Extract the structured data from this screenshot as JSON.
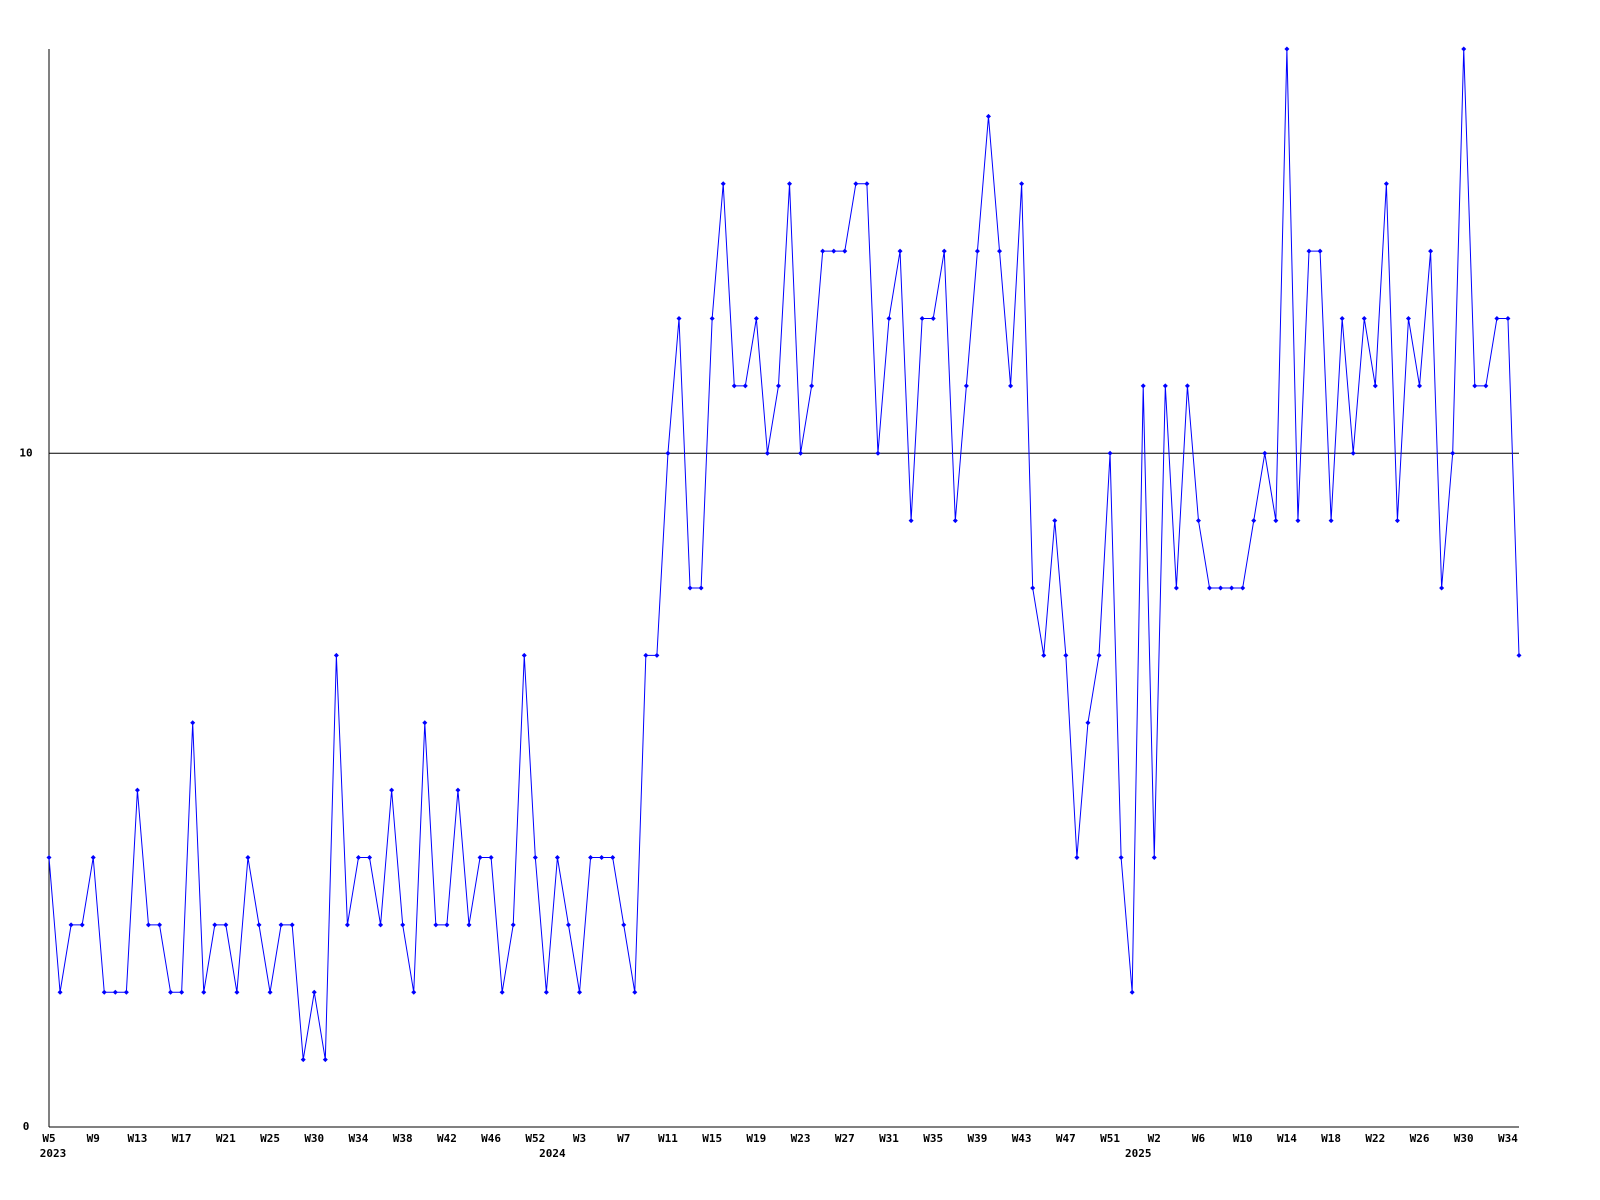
{
  "chart_data": {
    "type": "line",
    "categories": [
      "W5",
      null,
      null,
      null,
      "W9",
      null,
      null,
      null,
      "W13",
      null,
      null,
      null,
      "W17",
      null,
      null,
      null,
      "W21",
      null,
      null,
      null,
      "W25",
      null,
      null,
      null,
      "W30",
      null,
      null,
      null,
      "W34",
      null,
      null,
      null,
      "W38",
      null,
      null,
      null,
      "W42",
      null,
      null,
      null,
      "W46",
      null,
      null,
      null,
      "W52",
      null,
      null,
      null,
      "W3",
      null,
      null,
      null,
      "W7",
      null,
      null,
      null,
      "W11",
      null,
      null,
      null,
      "W15",
      null,
      null,
      null,
      "W19",
      null,
      null,
      null,
      "W23",
      null,
      null,
      null,
      "W27",
      null,
      null,
      null,
      "W31",
      null,
      null,
      null,
      "W35",
      null,
      null,
      null,
      "W39",
      null,
      null,
      null,
      "W43",
      null,
      null,
      null,
      "W47",
      null,
      null,
      null,
      "W51",
      null,
      null,
      null,
      "W2",
      null,
      null,
      null,
      "W6",
      null,
      null,
      null,
      "W10",
      null,
      null,
      null,
      "W14",
      null,
      null,
      null,
      "W18",
      null,
      null,
      null,
      "W22",
      null,
      null,
      null,
      "W26",
      null,
      null,
      null,
      "W30",
      null,
      null,
      null,
      "W34",
      null
    ],
    "year_groups": [
      {
        "label": "2023",
        "start": 0
      },
      {
        "label": "2024",
        "start": 46
      },
      {
        "label": "2025",
        "start": 99
      }
    ],
    "values": [
      4,
      2,
      3,
      3,
      4,
      2,
      2,
      2,
      5,
      3,
      3,
      2,
      2,
      6,
      2,
      3,
      3,
      2,
      4,
      3,
      2,
      3,
      3,
      1,
      2,
      1,
      7,
      3,
      4,
      4,
      3,
      5,
      3,
      2,
      6,
      3,
      3,
      5,
      3,
      4,
      4,
      2,
      3,
      7,
      4,
      2,
      4,
      3,
      2,
      4,
      4,
      4,
      3,
      2,
      7,
      7,
      10,
      12,
      8,
      8,
      12,
      14,
      11,
      11,
      12,
      10,
      11,
      14,
      10,
      11,
      13,
      13,
      13,
      14,
      14,
      10,
      12,
      13,
      9,
      12,
      12,
      13,
      9,
      11,
      13,
      15,
      13,
      11,
      14,
      8,
      7,
      9,
      7,
      4,
      6,
      7,
      10,
      4,
      2,
      11,
      4,
      11,
      8,
      11,
      9,
      8,
      8,
      8,
      8,
      9,
      10,
      9,
      16,
      9,
      13,
      13,
      9,
      12,
      10,
      12,
      11,
      14,
      9,
      12,
      11,
      13,
      8,
      10,
      16,
      11,
      11,
      12,
      12,
      7
    ],
    "color": "#0000ff",
    "ylim": [
      0,
      16
    ],
    "yticks": [
      0,
      10
    ],
    "grid": true
  }
}
